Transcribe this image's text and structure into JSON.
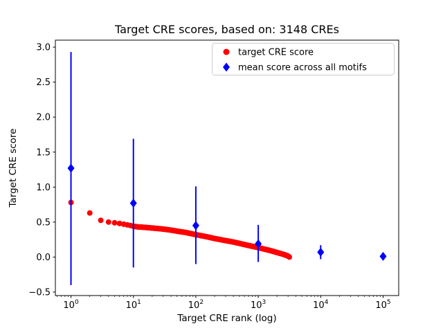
{
  "figure": {
    "background": "#ffffff"
  },
  "chart_data": {
    "type": "scatter",
    "title": "Target CRE scores, based on: 3148 CREs",
    "xlabel": "Target CRE rank (log)",
    "ylabel": "Target CRE score",
    "x_scale": "log",
    "x_log_range": [
      -0.25,
      5.25
    ],
    "ylim": [
      -0.55,
      3.1
    ],
    "x_tick_exponents": [
      0,
      1,
      2,
      3,
      4,
      5
    ],
    "y_ticks": [
      -0.5,
      0.0,
      0.5,
      1.0,
      1.5,
      2.0,
      2.5,
      3.0
    ],
    "grid": false,
    "legend_position": "upper right",
    "n_cres": 3148,
    "series": [
      {
        "name": "target CRE score",
        "type": "scatter",
        "marker": "circle",
        "color": "#ff0000",
        "n_points": 3148,
        "profile": [
          [
            1,
            0.78
          ],
          [
            2,
            0.63
          ],
          [
            3,
            0.525
          ],
          [
            4,
            0.5
          ],
          [
            5,
            0.49
          ],
          [
            6,
            0.48
          ],
          [
            7,
            0.47
          ],
          [
            8,
            0.46
          ],
          [
            9,
            0.45
          ],
          [
            10,
            0.44
          ],
          [
            12,
            0.43
          ],
          [
            15,
            0.425
          ],
          [
            20,
            0.415
          ],
          [
            30,
            0.4
          ],
          [
            40,
            0.385
          ],
          [
            50,
            0.37
          ],
          [
            70,
            0.35
          ],
          [
            100,
            0.32
          ],
          [
            150,
            0.29
          ],
          [
            200,
            0.265
          ],
          [
            300,
            0.235
          ],
          [
            400,
            0.215
          ],
          [
            500,
            0.195
          ],
          [
            700,
            0.165
          ],
          [
            1000,
            0.135
          ],
          [
            1300,
            0.11
          ],
          [
            1600,
            0.09
          ],
          [
            2000,
            0.065
          ],
          [
            2500,
            0.04
          ],
          [
            3000,
            0.015
          ],
          [
            3148,
            0.0
          ]
        ]
      },
      {
        "name": "mean score across all motifs",
        "type": "scatter_errorbar",
        "marker": "diamond",
        "color": "#0000ff",
        "points": [
          {
            "x": 1,
            "y": 1.27,
            "lo": -0.4,
            "hi": 2.93
          },
          {
            "x": 10,
            "y": 0.77,
            "lo": -0.15,
            "hi": 1.69
          },
          {
            "x": 100,
            "y": 0.45,
            "lo": -0.1,
            "hi": 1.01
          },
          {
            "x": 1000,
            "y": 0.19,
            "lo": -0.07,
            "hi": 0.46
          },
          {
            "x": 10000,
            "y": 0.07,
            "lo": -0.03,
            "hi": 0.17
          },
          {
            "x": 100000,
            "y": 0.01,
            "lo": -0.02,
            "hi": 0.05
          }
        ]
      }
    ]
  }
}
